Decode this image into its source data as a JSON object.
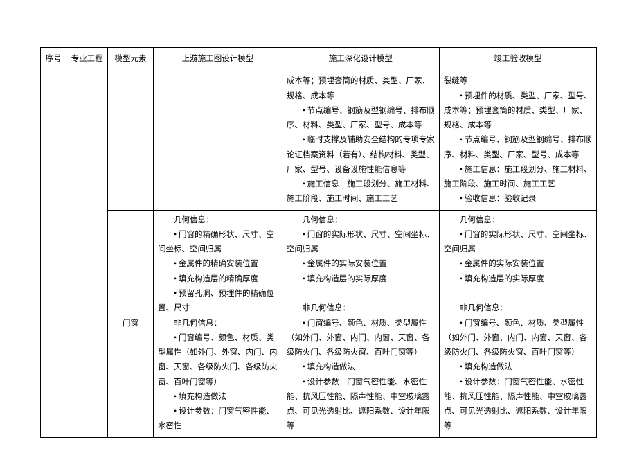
{
  "table": {
    "headers": {
      "seq": "序号",
      "proj": "专业工程",
      "elem": "模型元素",
      "colA": "上游施工图设计模型",
      "colB": "施工深化设计模型",
      "colC": "竣工验收模型"
    },
    "row1": {
      "colB_p1": "成本等；预埋套筒的材质、类型、厂家、规格、成本等",
      "colB_p2": "节点编号、钢筋及型钢编号、排布顺序、材料、类型、厂家、型号、成本等",
      "colB_p3": "临时支撑及辅助安全结构的专项专家论证档案资料（若有）、结构材料、类型、厂家、型号、设备设施性能信息等",
      "colB_p4": "施工信息：施工段划分、施工材料、施工阶段、施工时间、施工工艺",
      "colC_p1": "裂缝等",
      "colC_p2": "预埋件的材质、类型、厂家、型号、成本等；预埋套筒的材质、类型、厂家、规格、成本等",
      "colC_p3": "节点编号、钢筋及型钢编号、排布顺序、材料、类型、厂家、型号、成本等",
      "colC_p4": "施工信息：施工段划分、施工材料、施工阶段、施工时间、施工工艺",
      "colC_p5": "验收信息：验收记录"
    },
    "row2": {
      "elem": "门窗",
      "colA_p1": "几何信息：",
      "colA_p2": "门窗的精确形状、尺寸、空间坐标、空间归属",
      "colA_p3": "金属件的精确安装位置",
      "colA_p4": "填充构造层的精确厚度",
      "colA_p5": "预留孔洞、预埋件的精确位置、尺寸",
      "colA_p6": "非几何信息：",
      "colA_p7": "门窗编号、颜色、材质、类型属性（如外门、外窗、内门、内窗、天窗、各级防火门、各级防火窗、百叶门窗等）",
      "colA_p8": "填充构造做法",
      "colA_p9": "设计参数：门窗气密性能、水密性",
      "colB_p1": "几何信息：",
      "colB_p2": "门窗的实际形状、尺寸、空间坐标、空间归属",
      "colB_p3": "金属件的实际安装位置",
      "colB_p4": "填充构造层的实际厚度",
      "colB_p5": "",
      "colB_p6": "非几何信息：",
      "colB_p7": "门窗编号、颜色、材质、类型属性（如外门、外窗、内门、内窗、天窗、各级防火门、各级防火窗、百叶门窗等）",
      "colB_p8": "填充构造做法",
      "colB_p9": "设计参数：门窗气密性能、水密性能、抗风压性能、隔声性能、中空玻璃露点、可见光透射比、遮阳系数、设计年限等",
      "colC_p1": "几何信息：",
      "colC_p2": "门窗的实际形状、尺寸、空间坐标、空间归属",
      "colC_p3": "金属件的实际安装位置",
      "colC_p4": "填充构造层的实际厚度",
      "colC_p5": "",
      "colC_p6": "非几何信息：",
      "colC_p7": "门窗编号、颜色、材质、类型属性（如外门、外窗、内门、内窗、天窗、各级防火门、各级防火窗、百叶门窗等）",
      "colC_p8": "填充构造做法",
      "colC_p9": "设计参数：门窗气密性能、水密性能、抗风压性能、隔声性能、中空玻璃露点、可见光透射比、遮阳系数、设计年限等"
    }
  }
}
